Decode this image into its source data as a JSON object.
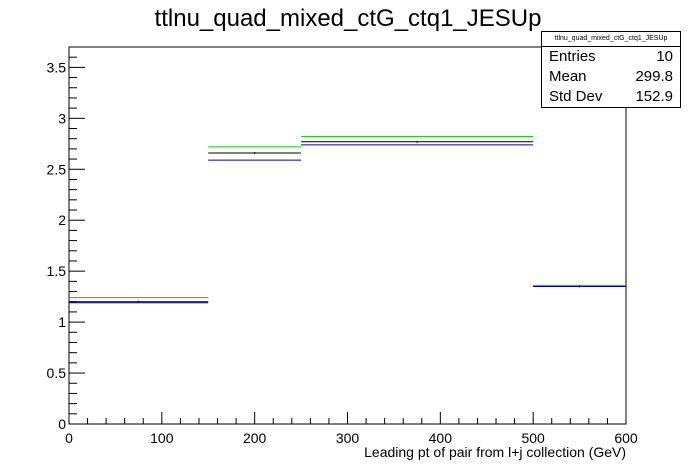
{
  "chart_data": {
    "type": "step",
    "title": "ttlnu_quad_mixed_ctG_ctq1_JESUp",
    "xlabel": "Leading pt of pair from l+j collection (GeV)",
    "ylabel": "",
    "xlim": [
      0,
      600
    ],
    "ylim": [
      0,
      3.7
    ],
    "x_ticks": [
      0,
      100,
      200,
      300,
      400,
      500,
      600
    ],
    "y_ticks": [
      0,
      0.5,
      1,
      1.5,
      2,
      2.5,
      3,
      3.5
    ],
    "bin_edges": [
      0,
      150,
      250,
      500,
      600
    ],
    "series": [
      {
        "color": "#00cc00",
        "values": [
          1.24,
          2.72,
          2.82,
          1.36
        ]
      },
      {
        "color": "#000000",
        "values": [
          1.2,
          2.66,
          2.77,
          1.35
        ]
      },
      {
        "color": "#000099",
        "values": [
          1.19,
          2.59,
          2.74,
          1.35
        ]
      }
    ],
    "grid": false,
    "stats_box": {
      "title": "ttlnu_quad_mixed_ctG_ctq1_JESUp",
      "rows": [
        {
          "label": "Entries",
          "value": "10"
        },
        {
          "label": "Mean",
          "value": "299.8"
        },
        {
          "label": "Std Dev",
          "value": "152.9"
        }
      ]
    }
  }
}
